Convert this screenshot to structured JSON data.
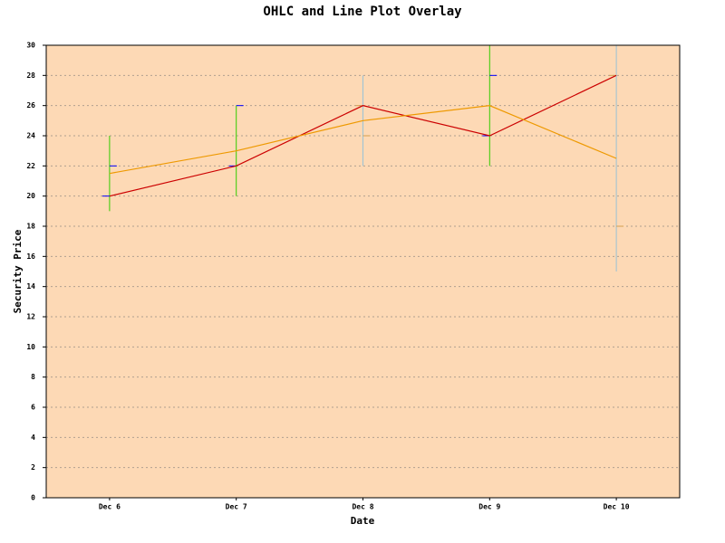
{
  "chart_data": {
    "type": "ohlc",
    "title": "OHLC and Line Plot Overlay",
    "xlabel": "Date",
    "ylabel": "Security Price",
    "categories": [
      "Dec  6",
      "Dec  7",
      "Dec  8",
      "Dec  9",
      "Dec 10"
    ],
    "ohlc": {
      "open": [
        20,
        22,
        26,
        24,
        28
      ],
      "high": [
        24,
        26,
        28,
        30,
        30
      ],
      "low": [
        19,
        20,
        22,
        22,
        15
      ],
      "close": [
        22,
        26,
        24,
        28,
        18
      ]
    },
    "up_color": "#33cc00",
    "down_color": "#99c2d6",
    "up_tick_color": "#0000ff",
    "down_tick_color": "#d2a050",
    "series": [
      {
        "type": "line",
        "color": "#cc0000",
        "values": [
          20,
          22,
          26,
          24,
          28
        ]
      },
      {
        "type": "line",
        "color": "#ee9900",
        "values": [
          21.5,
          23,
          25,
          26,
          22.5
        ]
      }
    ],
    "ylim": [
      0,
      30
    ],
    "yticks": [
      0,
      2,
      4,
      6,
      8,
      10,
      12,
      14,
      16,
      18,
      20,
      22,
      24,
      26,
      28,
      30
    ],
    "grid": true,
    "plot_bg": "#fdd9b5"
  }
}
